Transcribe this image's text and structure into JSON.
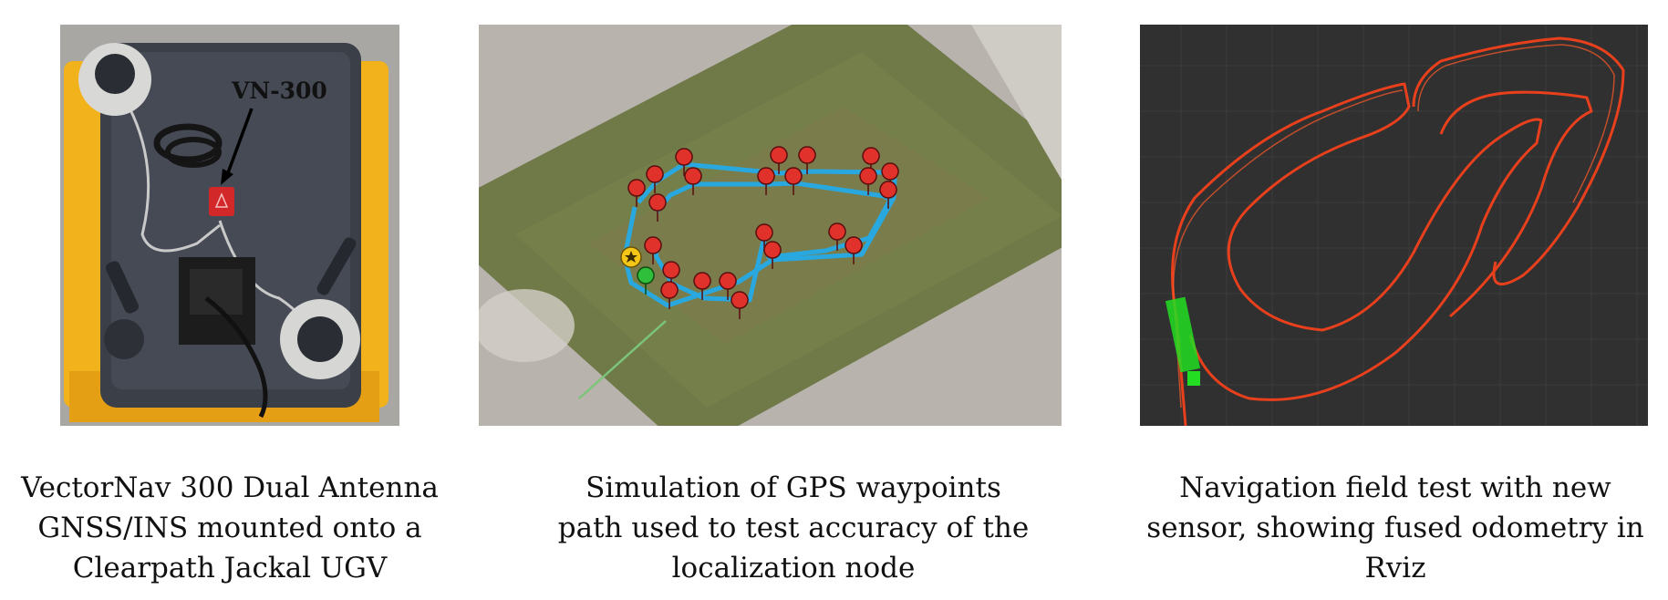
{
  "panels": [
    {
      "image_label": "VN-300",
      "caption": [
        "VectorNav 300 Dual Antenna",
        "GNSS/INS mounted onto a",
        "Clearpath Jackal UGV"
      ]
    },
    {
      "caption": [
        "Simulation of GPS waypoints",
        "path used to test accuracy of the",
        "localization node"
      ]
    },
    {
      "caption": [
        "Navigation field test with new",
        "sensor, showing fused odometry in",
        "Rviz"
      ]
    }
  ],
  "colors": {
    "path_blue": "#29a8e0",
    "marker_red": "#e0312a",
    "odometry_red": "#e8401c",
    "robot_green": "#22dd22",
    "rviz_bg": "#303030",
    "jackal_yellow": "#f2b21b"
  }
}
